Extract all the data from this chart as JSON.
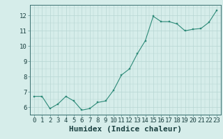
{
  "x": [
    0,
    1,
    2,
    3,
    4,
    5,
    6,
    7,
    8,
    9,
    10,
    11,
    12,
    13,
    14,
    15,
    16,
    17,
    18,
    19,
    20,
    21,
    22,
    23
  ],
  "y": [
    6.7,
    6.7,
    5.9,
    6.2,
    6.7,
    6.4,
    5.8,
    5.9,
    6.3,
    6.4,
    7.1,
    8.1,
    8.5,
    9.5,
    10.35,
    11.95,
    11.6,
    11.6,
    11.45,
    11.0,
    11.1,
    11.15,
    11.55,
    12.35
  ],
  "line_color": "#2d8a78",
  "marker_color": "#2d8a78",
  "bg_color": "#d6edea",
  "grid_color": "#b8d8d4",
  "xlabel": "Humidex (Indice chaleur)",
  "xlabel_fontsize": 8,
  "ylabel_ticks": [
    6,
    7,
    8,
    9,
    10,
    11,
    12
  ],
  "xlim": [
    -0.5,
    23.5
  ],
  "ylim": [
    5.5,
    12.7
  ],
  "tick_fontsize": 6.5
}
